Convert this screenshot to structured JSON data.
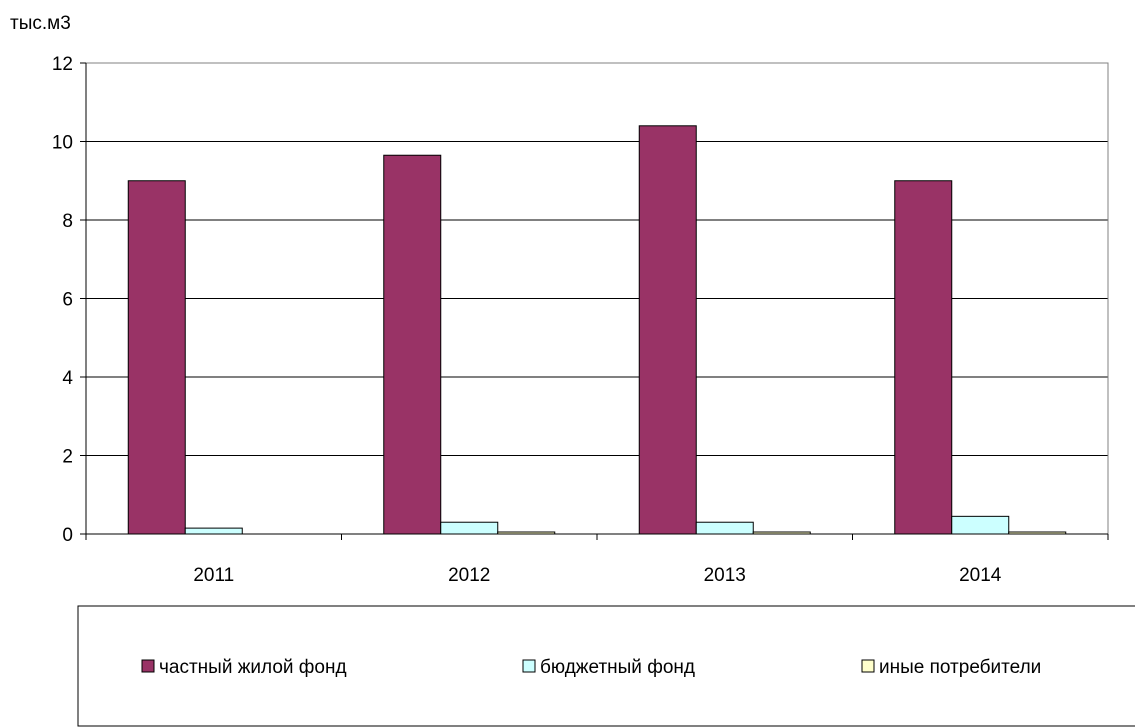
{
  "chart_data": {
    "type": "bar",
    "title": "",
    "ylabel": "тыс.м3",
    "xlabel": "",
    "categories": [
      "2011",
      "2012",
      "2013",
      "2014"
    ],
    "ylim": [
      0,
      12
    ],
    "yticks": [
      0,
      2,
      4,
      6,
      8,
      10,
      12
    ],
    "grid": true,
    "legend_position": "bottom",
    "series": [
      {
        "name": "частный жилой фонд",
        "color": "#993366",
        "values": [
          9.0,
          9.65,
          10.4,
          9.0
        ]
      },
      {
        "name": "бюджетный фонд",
        "color": "#ccffff",
        "values": [
          0.15,
          0.3,
          0.3,
          0.45
        ]
      },
      {
        "name": "иные потребители",
        "color": "#ffffcc",
        "values": [
          0.0,
          0.05,
          0.05,
          0.05
        ]
      }
    ]
  }
}
